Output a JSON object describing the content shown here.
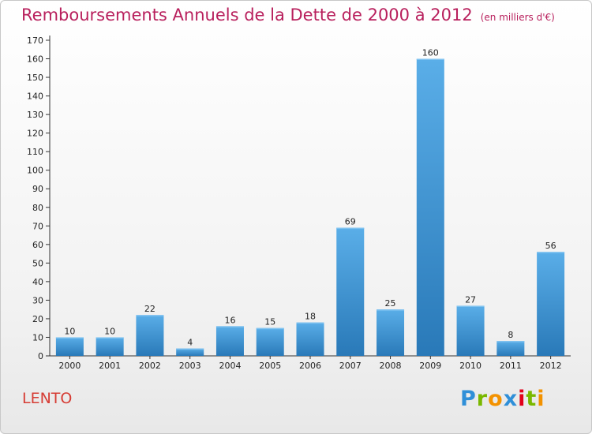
{
  "title": "Remboursements Annuels de la Dette de 2000 à 2012",
  "unit_note": "(en milliers d'€)",
  "commune": "LENTO",
  "logo": {
    "letters": [
      "P",
      "r",
      "o",
      "x",
      "i",
      "t",
      "i"
    ],
    "colors": [
      "#2f8fd8",
      "#7ab800",
      "#f39200",
      "#2f8fd8",
      "#e2001a",
      "#7ab800",
      "#f39200"
    ]
  },
  "colors": {
    "title": "#b81f5c",
    "bar_top": "#5aaee8",
    "bar_bottom": "#2979b8",
    "axis": "#333333",
    "grid": "#d0d0d0"
  },
  "chart_data": {
    "type": "bar",
    "title": "Remboursements Annuels de la Dette de 2000 à 2012",
    "xlabel": "",
    "ylabel": "",
    "categories": [
      "2000",
      "2001",
      "2002",
      "2003",
      "2004",
      "2005",
      "2006",
      "2007",
      "2008",
      "2009",
      "2010",
      "2011",
      "2012"
    ],
    "values": [
      10,
      10,
      22,
      4,
      16,
      15,
      18,
      69,
      25,
      160,
      27,
      8,
      56
    ],
    "ylim": [
      0,
      170
    ],
    "ytick_step": 10,
    "grid": false,
    "legend": "none",
    "data_labels": true
  }
}
